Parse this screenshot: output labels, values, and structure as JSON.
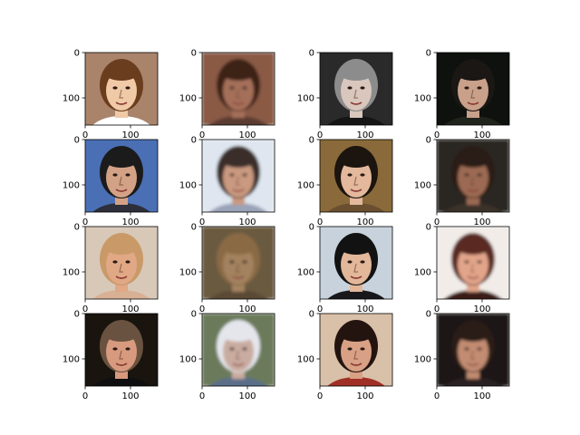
{
  "figure": {
    "rows": 4,
    "cols": 4,
    "y_ticks": [
      "0",
      "100"
    ],
    "x_ticks": [
      "0",
      "100"
    ],
    "panels": [
      {
        "row": 0,
        "col": 0,
        "kind": "real",
        "colors": {
          "bg": "#a9846b",
          "hair": "#6b3d1f",
          "skin": "#f0c9a6",
          "shirt": "#ffffff"
        }
      },
      {
        "row": 0,
        "col": 1,
        "kind": "generated",
        "colors": {
          "bg": "#8a5a45",
          "hair": "#3c2219",
          "skin": "#a5705a",
          "shirt": "#5a3a30"
        }
      },
      {
        "row": 0,
        "col": 2,
        "kind": "real",
        "colors": {
          "bg": "#2a2a2a",
          "hair": "#8c8c8c",
          "skin": "#d9c6bd",
          "shirt": "#151515"
        }
      },
      {
        "row": 0,
        "col": 3,
        "kind": "real",
        "colors": {
          "bg": "#0e110d",
          "hair": "#1a1714",
          "skin": "#c9a08a",
          "shirt": "#20241c"
        }
      },
      {
        "row": 1,
        "col": 0,
        "kind": "real",
        "colors": {
          "bg": "#4a6fb5",
          "hair": "#1b1b1b",
          "skin": "#d3a286",
          "shirt": "#2d2f3a"
        }
      },
      {
        "row": 1,
        "col": 1,
        "kind": "generated",
        "colors": {
          "bg": "#dfe6f0",
          "hair": "#3a2e2a",
          "skin": "#c99980",
          "shirt": "#9aa3b8"
        }
      },
      {
        "row": 1,
        "col": 2,
        "kind": "real",
        "colors": {
          "bg": "#8a6a3a",
          "hair": "#1c140e",
          "skin": "#e3b89c",
          "shirt": "#6a5030"
        }
      },
      {
        "row": 1,
        "col": 3,
        "kind": "generated",
        "colors": {
          "bg": "#2a2622",
          "hair": "#2a1a14",
          "skin": "#9c6a52",
          "shirt": "#3a322c"
        }
      },
      {
        "row": 2,
        "col": 0,
        "kind": "real",
        "colors": {
          "bg": "#d8c8b8",
          "hair": "#c99a68",
          "skin": "#e0a885",
          "shirt": "#d8b094"
        }
      },
      {
        "row": 2,
        "col": 1,
        "kind": "generated",
        "colors": {
          "bg": "#6b5a40",
          "hair": "#8a6a44",
          "skin": "#a3825e",
          "shirt": "#5a4a35"
        }
      },
      {
        "row": 2,
        "col": 2,
        "kind": "real",
        "colors": {
          "bg": "#c7d2dc",
          "hair": "#121212",
          "skin": "#e2b79a",
          "shirt": "#18181c"
        }
      },
      {
        "row": 2,
        "col": 3,
        "kind": "generated",
        "colors": {
          "bg": "#f2ece8",
          "hair": "#5a2a20",
          "skin": "#e2a58a",
          "shirt": "#3a1a18"
        }
      },
      {
        "row": 3,
        "col": 0,
        "kind": "real",
        "colors": {
          "bg": "#1a140e",
          "hair": "#6a5240",
          "skin": "#d79a7e",
          "shirt": "#0f0f12"
        }
      },
      {
        "row": 3,
        "col": 1,
        "kind": "generated",
        "colors": {
          "bg": "#6a7a5a",
          "hair": "#e4e6ec",
          "skin": "#c9aca0",
          "shirt": "#5a6e8a"
        }
      },
      {
        "row": 3,
        "col": 2,
        "kind": "real",
        "colors": {
          "bg": "#d9c0a8",
          "hair": "#241410",
          "skin": "#d8a084",
          "shirt": "#a02f26"
        }
      },
      {
        "row": 3,
        "col": 3,
        "kind": "generated",
        "colors": {
          "bg": "#1c1614",
          "hair": "#2a1a14",
          "skin": "#c28c72",
          "shirt": "#2c2320"
        }
      }
    ]
  }
}
